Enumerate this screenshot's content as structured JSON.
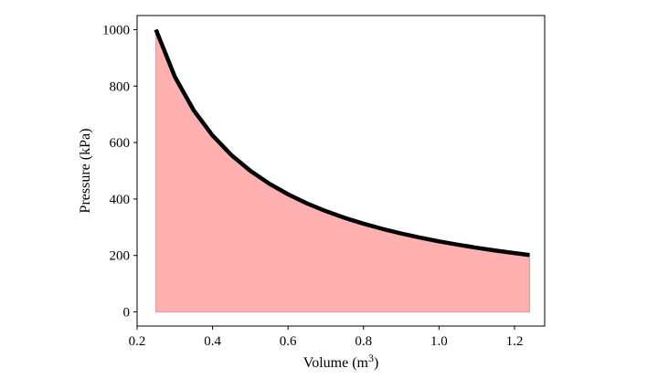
{
  "chart_data": {
    "type": "area",
    "xlabel": "Volume (m",
    "xlabel_superscript": "3",
    "xlabel_suffix": ")",
    "ylabel": "Pressure (kPa)",
    "xlim": [
      0.2,
      1.28
    ],
    "ylim": [
      -50,
      1050
    ],
    "x_ticks": [
      0.2,
      0.4,
      0.6,
      0.8,
      1.0,
      1.2
    ],
    "x_tick_labels": [
      "0.2",
      "0.4",
      "0.6",
      "0.8",
      "1.0",
      "1.2"
    ],
    "y_ticks": [
      0,
      200,
      400,
      600,
      800,
      1000
    ],
    "y_tick_labels": [
      "0",
      "200",
      "400",
      "600",
      "800",
      "1000"
    ],
    "grid": false,
    "legend": "none",
    "series": [
      {
        "x": [
          0.25,
          0.3,
          0.35,
          0.4,
          0.45,
          0.5,
          0.55,
          0.6,
          0.65,
          0.7,
          0.75,
          0.8,
          0.85,
          0.9,
          0.95,
          1.0,
          1.05,
          1.1,
          1.15,
          1.2,
          1.24
        ],
        "values": [
          1000,
          833.3,
          714.3,
          625,
          555.6,
          500,
          454.5,
          416.7,
          384.6,
          357.1,
          333.3,
          312.5,
          294.1,
          277.8,
          263.2,
          250,
          238.1,
          227.3,
          217.4,
          208.3,
          201.6
        ],
        "line_color": "#000000",
        "fill_color": "#ffb0b0",
        "fill_edge_color": "#e89a9a",
        "fill_to": 0
      }
    ]
  }
}
